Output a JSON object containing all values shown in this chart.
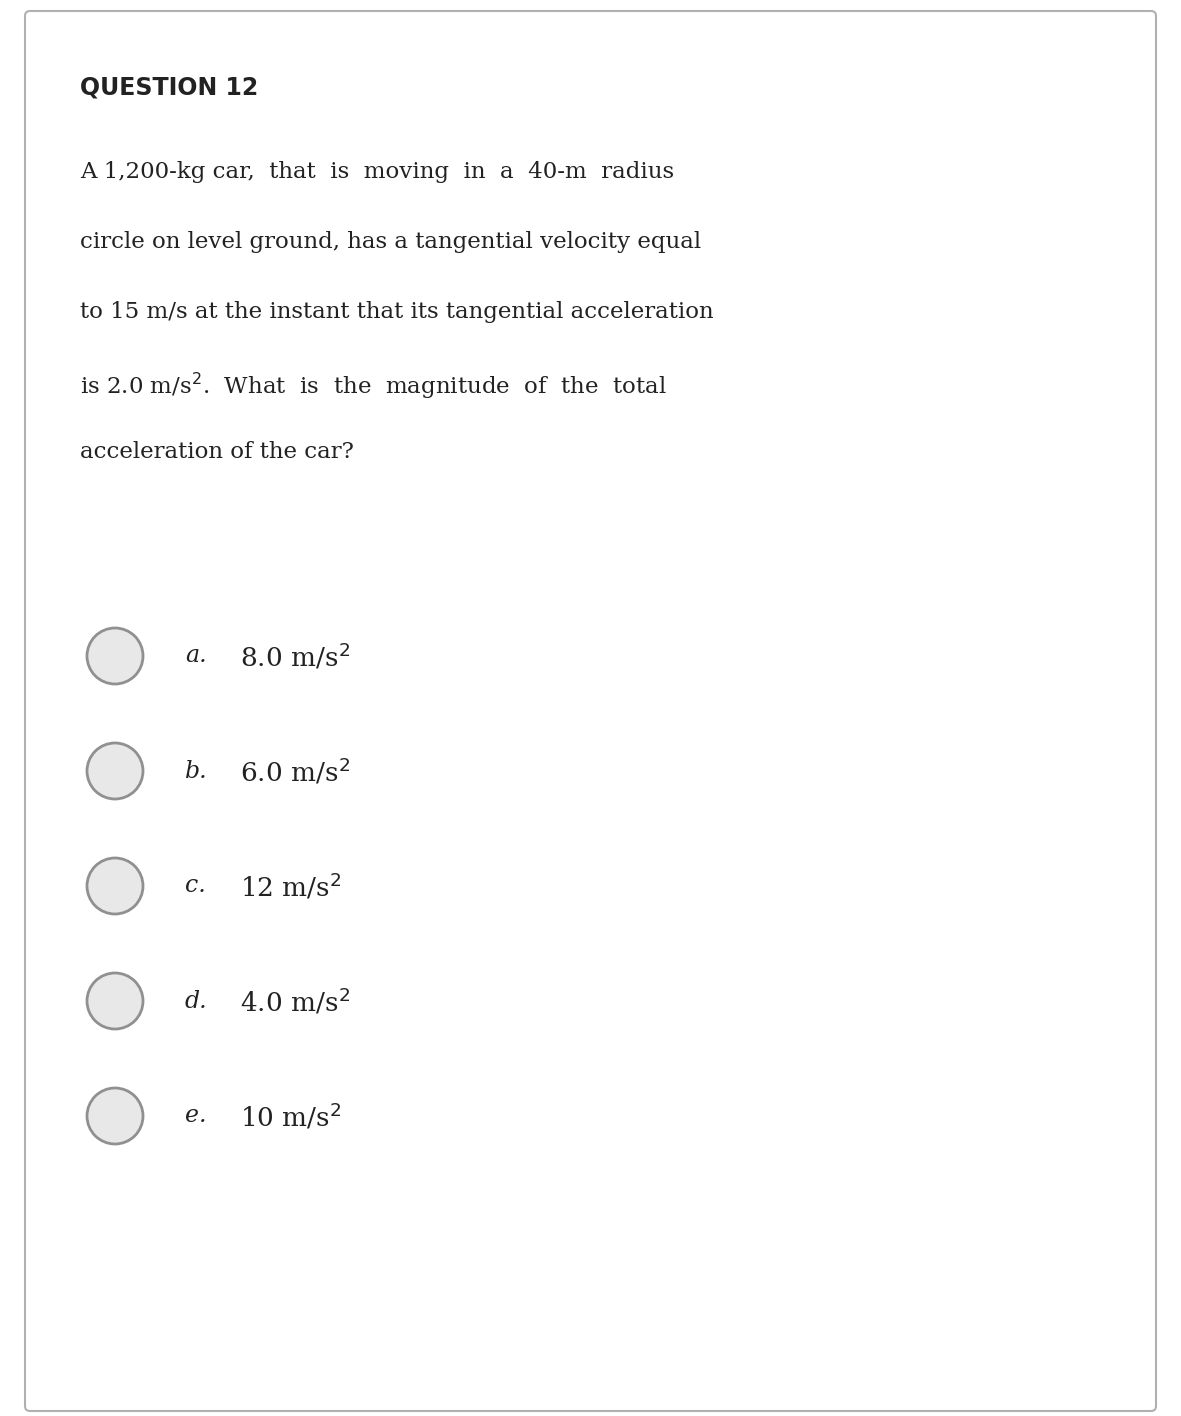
{
  "title": "QUESTION 12",
  "question_line1": "A 1,200-kg car,  that  is  moving  in  a  40-m  radius",
  "question_line2": "circle on level ground, has a tangential velocity equal",
  "question_line3": "to 15 m/s at the instant that its tangential acceleration",
  "question_line4_pre": "is 2.0 m/s",
  "question_line4_post": ".  What  is  the  magnitude  of  the  total",
  "question_line5": "acceleration of the car?",
  "options": [
    {
      "letter": "a.",
      "text": "8.0 m/s",
      "superscript": "2"
    },
    {
      "letter": "b.",
      "text": "6.0 m/s",
      "superscript": "2"
    },
    {
      "letter": "c.",
      "text": "12 m/s",
      "superscript": "2"
    },
    {
      "letter": "d.",
      "text": "4.0 m/s",
      "superscript": "2"
    },
    {
      "letter": "e.",
      "text": "10 m/s",
      "superscript": "2"
    }
  ],
  "bg_color": "#ffffff",
  "text_color": "#222222",
  "border_color": "#b0b0b0",
  "circle_edge_color": "#909090",
  "circle_fill_color": "#e8e8e8",
  "title_fontsize": 17,
  "question_fontsize": 16.5,
  "option_fontsize": 19,
  "letter_fontsize": 17
}
